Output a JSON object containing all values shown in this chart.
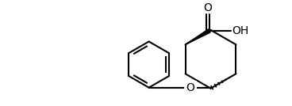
{
  "bg_color": "#ffffff",
  "line_color": "#000000",
  "line_width": 1.5,
  "figsize": [
    3.68,
    1.34
  ],
  "dpi": 100,
  "xlim": [
    0,
    368
  ],
  "ylim": [
    0,
    134
  ]
}
